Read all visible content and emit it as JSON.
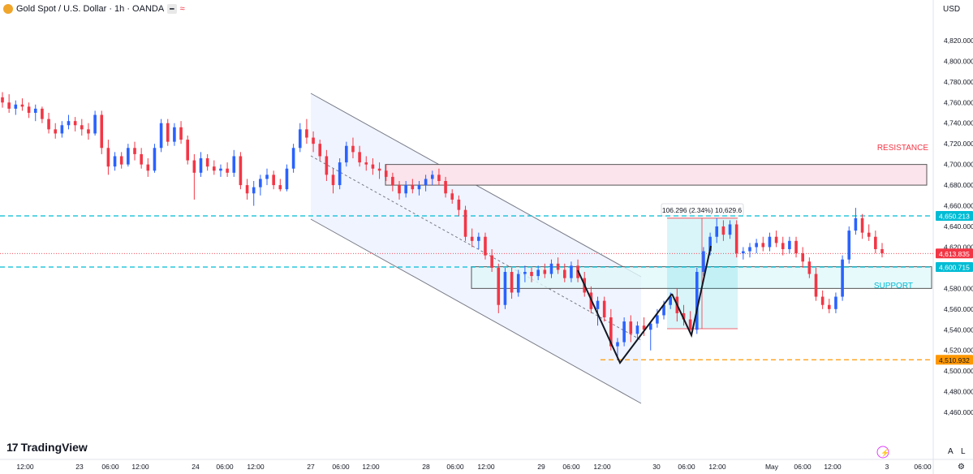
{
  "header": {
    "symbol": "Gold Spot / U.S. Dollar · 1h · OANDA",
    "badge": "━",
    "wave": "≈"
  },
  "axis_controls": {
    "currency": "USD",
    "auto": "A",
    "log": "L"
  },
  "branding": {
    "name": "TradingView",
    "mark_icon": "tradingview-logo-icon"
  },
  "chart_data": {
    "type": "candlestick",
    "title": "",
    "xlabel": "",
    "ylabel": "",
    "ylim": [
      4442,
      4838
    ],
    "y_ticks": [
      "4,820.000",
      "4,800.000",
      "4,780.000",
      "4,760.000",
      "4,740.000",
      "4,720.000",
      "4,700.000",
      "4,680.000",
      "4,660.000",
      "4,640.000",
      "4,620.000",
      "4,600.000",
      "4,580.000",
      "4,560.000",
      "4,540.000",
      "4,520.000",
      "4,500.000",
      "4,480.000",
      "4,460.000"
    ],
    "x_ticks": [
      "12:00",
      "23",
      "06:00",
      "12:00",
      "24",
      "06:00",
      "12:00",
      "27",
      "06:00",
      "12:00",
      "28",
      "06:00",
      "12:00",
      "29",
      "06:00",
      "12:00",
      "30",
      "06:00",
      "12:00",
      "May",
      "06:00",
      "12:00",
      "3",
      "06:00"
    ],
    "colors": {
      "up": "#2962ff",
      "down": "#f23645",
      "cyan": "#00bcd4",
      "orange": "#ff9800",
      "resistance_fill": "#fce4ec",
      "support_fill": "#e0f7fa"
    },
    "zones": [
      {
        "label": "RESISTANCE",
        "from": 4680,
        "to": 4700
      },
      {
        "label": "SUPPORT",
        "from": 4580,
        "to": 4601
      }
    ],
    "levels": [
      {
        "value": 4650.213,
        "label": "4,650.213"
      },
      {
        "value": 4600.715,
        "label": "4,600.715"
      },
      {
        "value": 4510.932,
        "label": "4,510.932"
      }
    ],
    "current_price": {
      "value": 4613.835,
      "label": "4,613.835"
    },
    "measure": {
      "label": "106.296 (2.34%) 10,629.6",
      "from": 4541,
      "to": 4648
    },
    "candles": [
      [
        4765,
        4770,
        4755,
        4760
      ],
      [
        4760,
        4768,
        4750,
        4754
      ],
      [
        4754,
        4762,
        4748,
        4758
      ],
      [
        4758,
        4764,
        4752,
        4756
      ],
      [
        4756,
        4760,
        4745,
        4750
      ],
      [
        4750,
        4758,
        4742,
        4754
      ],
      [
        4754,
        4756,
        4740,
        4744
      ],
      [
        4744,
        4750,
        4730,
        4734
      ],
      [
        4734,
        4740,
        4725,
        4730
      ],
      [
        4730,
        4742,
        4726,
        4738
      ],
      [
        4738,
        4748,
        4734,
        4742
      ],
      [
        4742,
        4746,
        4732,
        4738
      ],
      [
        4738,
        4744,
        4728,
        4734
      ],
      [
        4734,
        4740,
        4724,
        4730
      ],
      [
        4730,
        4752,
        4728,
        4748
      ],
      [
        4748,
        4752,
        4710,
        4716
      ],
      [
        4716,
        4724,
        4690,
        4698
      ],
      [
        4698,
        4712,
        4694,
        4708
      ],
      [
        4708,
        4712,
        4696,
        4700
      ],
      [
        4700,
        4720,
        4698,
        4716
      ],
      [
        4716,
        4722,
        4704,
        4710
      ],
      [
        4710,
        4716,
        4696,
        4700
      ],
      [
        4700,
        4706,
        4688,
        4694
      ],
      [
        4694,
        4720,
        4692,
        4716
      ],
      [
        4716,
        4744,
        4712,
        4740
      ],
      [
        4740,
        4744,
        4718,
        4722
      ],
      [
        4722,
        4740,
        4718,
        4736
      ],
      [
        4736,
        4742,
        4720,
        4724
      ],
      [
        4724,
        4728,
        4700,
        4704
      ],
      [
        4704,
        4710,
        4666,
        4692
      ],
      [
        4692,
        4712,
        4688,
        4706
      ],
      [
        4706,
        4710,
        4694,
        4698
      ],
      [
        4698,
        4704,
        4690,
        4694
      ],
      [
        4694,
        4700,
        4688,
        4696
      ],
      [
        4696,
        4702,
        4688,
        4692
      ],
      [
        4692,
        4714,
        4688,
        4708
      ],
      [
        4708,
        4712,
        4676,
        4680
      ],
      [
        4680,
        4686,
        4666,
        4672
      ],
      [
        4672,
        4684,
        4660,
        4678
      ],
      [
        4678,
        4690,
        4670,
        4686
      ],
      [
        4686,
        4696,
        4680,
        4690
      ],
      [
        4690,
        4694,
        4676,
        4680
      ],
      [
        4680,
        4686,
        4674,
        4676
      ],
      [
        4676,
        4700,
        4674,
        4696
      ],
      [
        4696,
        4720,
        4692,
        4716
      ],
      [
        4716,
        4740,
        4712,
        4734
      ],
      [
        4734,
        4744,
        4720,
        4726
      ],
      [
        4726,
        4732,
        4712,
        4720
      ],
      [
        4720,
        4724,
        4704,
        4708
      ],
      [
        4708,
        4714,
        4684,
        4690
      ],
      [
        4690,
        4696,
        4672,
        4680
      ],
      [
        4680,
        4706,
        4676,
        4702
      ],
      [
        4702,
        4722,
        4698,
        4718
      ],
      [
        4718,
        4726,
        4706,
        4712
      ],
      [
        4712,
        4718,
        4698,
        4702
      ],
      [
        4702,
        4708,
        4694,
        4700
      ],
      [
        4700,
        4706,
        4690,
        4696
      ],
      [
        4696,
        4702,
        4686,
        4694
      ],
      [
        4694,
        4700,
        4684,
        4688
      ],
      [
        4688,
        4692,
        4674,
        4680
      ],
      [
        4680,
        4684,
        4666,
        4672
      ],
      [
        4672,
        4684,
        4668,
        4680
      ],
      [
        4680,
        4686,
        4672,
        4676
      ],
      [
        4676,
        4684,
        4670,
        4680
      ],
      [
        4680,
        4690,
        4674,
        4686
      ],
      [
        4686,
        4694,
        4680,
        4690
      ],
      [
        4690,
        4696,
        4680,
        4684
      ],
      [
        4684,
        4688,
        4668,
        4672
      ],
      [
        4672,
        4676,
        4662,
        4666
      ],
      [
        4666,
        4670,
        4650,
        4656
      ],
      [
        4656,
        4660,
        4626,
        4630
      ],
      [
        4630,
        4638,
        4620,
        4626
      ],
      [
        4626,
        4634,
        4618,
        4630
      ],
      [
        4630,
        4634,
        4608,
        4612
      ],
      [
        4612,
        4618,
        4596,
        4600
      ],
      [
        4600,
        4604,
        4556,
        4564
      ],
      [
        4564,
        4600,
        4560,
        4596
      ],
      [
        4596,
        4600,
        4570,
        4576
      ],
      [
        4576,
        4598,
        4572,
        4594
      ],
      [
        4594,
        4602,
        4586,
        4596
      ],
      [
        4596,
        4600,
        4586,
        4592
      ],
      [
        4592,
        4602,
        4588,
        4598
      ],
      [
        4598,
        4604,
        4590,
        4594
      ],
      [
        4594,
        4608,
        4590,
        4604
      ],
      [
        4604,
        4610,
        4594,
        4598
      ],
      [
        4598,
        4604,
        4586,
        4590
      ],
      [
        4590,
        4606,
        4586,
        4602
      ],
      [
        4602,
        4608,
        4586,
        4590
      ],
      [
        4590,
        4596,
        4572,
        4576
      ],
      [
        4576,
        4582,
        4556,
        4560
      ],
      [
        4560,
        4572,
        4544,
        4568
      ],
      [
        4568,
        4572,
        4548,
        4552
      ],
      [
        4552,
        4560,
        4520,
        4524
      ],
      [
        4524,
        4532,
        4511,
        4528
      ],
      [
        4528,
        4552,
        4524,
        4548
      ],
      [
        4548,
        4554,
        4528,
        4536
      ],
      [
        4536,
        4548,
        4530,
        4544
      ],
      [
        4544,
        4552,
        4534,
        4540
      ],
      [
        4540,
        4548,
        4520,
        4546
      ],
      [
        4546,
        4560,
        4542,
        4554
      ],
      [
        4554,
        4568,
        4550,
        4564
      ],
      [
        4564,
        4576,
        4560,
        4572
      ],
      [
        4572,
        4580,
        4548,
        4556
      ],
      [
        4556,
        4564,
        4544,
        4550
      ],
      [
        4550,
        4558,
        4536,
        4540
      ],
      [
        4540,
        4600,
        4536,
        4596
      ],
      [
        4596,
        4620,
        4592,
        4616
      ],
      [
        4616,
        4634,
        4612,
        4630
      ],
      [
        4630,
        4648,
        4624,
        4640
      ],
      [
        4640,
        4646,
        4626,
        4632
      ],
      [
        4632,
        4646,
        4628,
        4642
      ],
      [
        4642,
        4646,
        4610,
        4614
      ],
      [
        4614,
        4620,
        4608,
        4616
      ],
      [
        4616,
        4624,
        4610,
        4620
      ],
      [
        4620,
        4628,
        4614,
        4624
      ],
      [
        4624,
        4630,
        4616,
        4620
      ],
      [
        4620,
        4634,
        4616,
        4630
      ],
      [
        4630,
        4636,
        4620,
        4624
      ],
      [
        4624,
        4630,
        4612,
        4618
      ],
      [
        4618,
        4630,
        4614,
        4626
      ],
      [
        4626,
        4630,
        4610,
        4614
      ],
      [
        4614,
        4620,
        4600,
        4606
      ],
      [
        4606,
        4610,
        4590,
        4594
      ],
      [
        4594,
        4600,
        4568,
        4572
      ],
      [
        4572,
        4578,
        4560,
        4564
      ],
      [
        4564,
        4570,
        4556,
        4560
      ],
      [
        4560,
        4576,
        4556,
        4572
      ],
      [
        4572,
        4612,
        4568,
        4608
      ],
      [
        4608,
        4640,
        4604,
        4636
      ],
      [
        4636,
        4658,
        4632,
        4648
      ],
      [
        4648,
        4652,
        4628,
        4634
      ],
      [
        4634,
        4642,
        4626,
        4630
      ],
      [
        4630,
        4636,
        4614,
        4618
      ],
      [
        4618,
        4624,
        4610,
        4614
      ]
    ]
  }
}
